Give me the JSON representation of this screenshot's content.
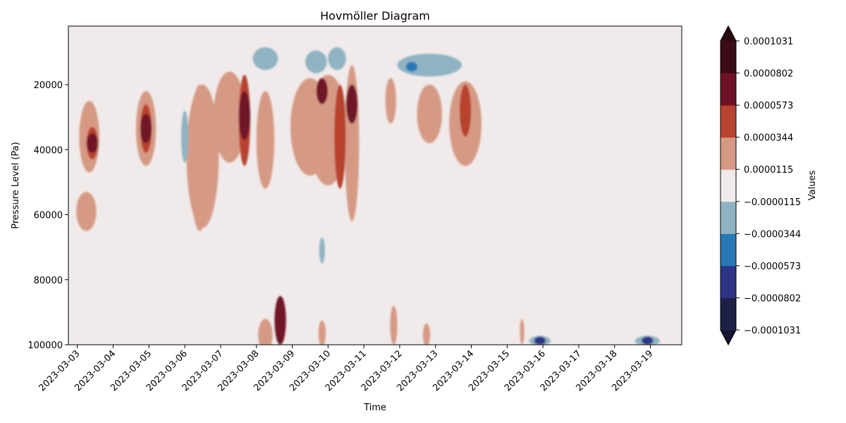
{
  "chart_data": {
    "type": "heatmap",
    "title": "Hovmöller Diagram",
    "xlabel": "Time",
    "ylabel": "Pressure Level (Pa)",
    "x_ticks": [
      "2023-03-03",
      "2023-03-04",
      "2023-03-05",
      "2023-03-06",
      "2023-03-07",
      "2023-03-08",
      "2023-03-09",
      "2023-03-10",
      "2023-03-11",
      "2023-03-12",
      "2023-03-13",
      "2023-03-14",
      "2023-03-15",
      "2023-03-16",
      "2023-03-17",
      "2023-03-18",
      "2023-03-19"
    ],
    "xlim": [
      "2023-03-02T18:00",
      "2023-03-19T21:00"
    ],
    "y_ticks": [
      20000,
      40000,
      60000,
      80000,
      100000
    ],
    "y_tick_labels": [
      "20000",
      "40000",
      "60000",
      "80000",
      "100000"
    ],
    "ylim": [
      100000,
      2000
    ],
    "y_inverted": true,
    "colorbar": {
      "label": "Values",
      "extend": "both",
      "levels": [
        -0.0001031,
        -8.02e-05,
        -5.73e-05,
        -3.44e-05,
        -1.15e-05,
        1.15e-05,
        3.44e-05,
        5.73e-05,
        8.02e-05,
        0.0001031
      ],
      "tick_labels": [
        "−0.0001031",
        "−0.0000802",
        "−0.0000573",
        "−0.0000344",
        "−0.0000115",
        "0.0000115",
        "0.0000344",
        "0.0000573",
        "0.0000802",
        "0.0001031"
      ],
      "colors": [
        "#1d1f45",
        "#2c3487",
        "#2878b8",
        "#8fb3c2",
        "#f0eaea",
        "#d69a84",
        "#b8432f",
        "#6f1228",
        "#3b0b16"
      ],
      "under_color": "#14152e",
      "over_color": "#2a0810"
    },
    "features": [
      {
        "type": "contour_blob",
        "time": "2023-03-03T08:00",
        "pressure_range": [
          25000,
          47000
        ],
        "level": "0.0000344"
      },
      {
        "type": "contour_blob",
        "time": "2023-03-03T10:00",
        "pressure_range": [
          33000,
          43000
        ],
        "level": "0.0000573"
      },
      {
        "type": "contour_blob",
        "time": "2023-03-03T10:00",
        "pressure_range": [
          35000,
          41000
        ],
        "level": "0.0000802"
      },
      {
        "type": "contour_blob",
        "time": "2023-03-03T06:00",
        "pressure_range": [
          53000,
          65000
        ],
        "level": "0.0000344"
      },
      {
        "type": "contour_blob",
        "time": "2023-03-04T22:00",
        "pressure_range": [
          22000,
          45000
        ],
        "level": "0.0000344"
      },
      {
        "type": "contour_blob",
        "time": "2023-03-04T22:00",
        "pressure_range": [
          26000,
          41000
        ],
        "level": "0.0000573"
      },
      {
        "type": "contour_blob",
        "time": "2023-03-04T22:00",
        "pressure_range": [
          29000,
          38000
        ],
        "level": "0.0000802"
      },
      {
        "type": "contour_blob",
        "time": "2023-03-06T10:00",
        "pressure_range": [
          20000,
          65000
        ],
        "level": "0.0000344"
      },
      {
        "type": "contour_blob",
        "time": "2023-03-07T16:00",
        "pressure_range": [
          17000,
          45000
        ],
        "level": "0.0000573"
      },
      {
        "type": "contour_blob",
        "time": "2023-03-07T16:00",
        "pressure_range": [
          22000,
          37000
        ],
        "level": "0.0000802"
      },
      {
        "type": "contour_blob",
        "time": "2023-03-09T20:00",
        "pressure_range": [
          18000,
          26000
        ],
        "level": "0.0000802"
      },
      {
        "type": "contour_blob",
        "time": "2023-03-10T08:00",
        "pressure_range": [
          20000,
          52000
        ],
        "level": "0.0000573"
      },
      {
        "type": "contour_blob",
        "time": "2023-03-10T16:00",
        "pressure_range": [
          20000,
          32000
        ],
        "level": "0.0000802"
      },
      {
        "type": "contour_blob",
        "time": "2023-03-13T20:00",
        "pressure_range": [
          20000,
          36000
        ],
        "level": "0.0000573"
      },
      {
        "type": "contour_blob",
        "time": "2023-03-08T16:00",
        "pressure_range": [
          85000,
          100000
        ],
        "level": "0.0000802"
      },
      {
        "type": "contour_blob",
        "time": "2023-03-12T08:00",
        "pressure_range": [
          13000,
          16000
        ],
        "level": "−0.0000573"
      },
      {
        "type": "contour_blob",
        "time": "2023-03-15T22:00",
        "pressure_range": [
          97500,
          100000
        ],
        "level": "−0.0000802"
      },
      {
        "type": "contour_blob",
        "time": "2023-03-18T22:00",
        "pressure_range": [
          97500,
          100000
        ],
        "level": "−0.0000802"
      }
    ]
  }
}
